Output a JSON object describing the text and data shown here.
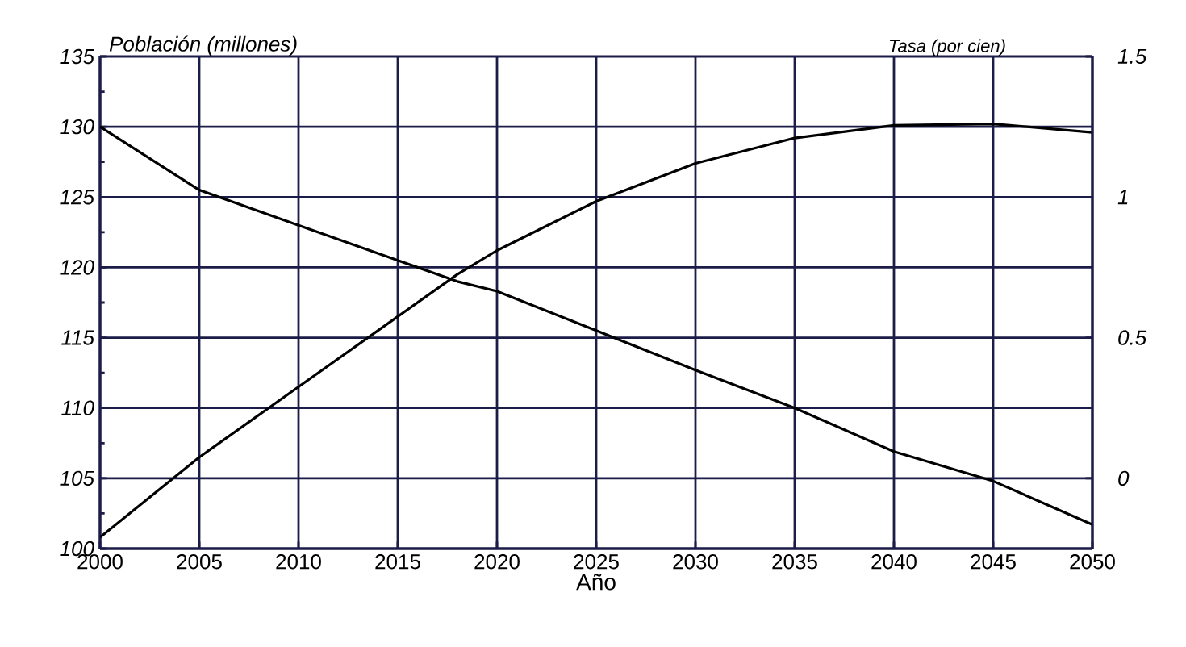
{
  "chart_data": {
    "type": "line",
    "xlabel": "Año",
    "ylabel": "Población (millones)",
    "y2label": "Tasa (por cien)",
    "x": [
      2000,
      2005,
      2010,
      2015,
      2018,
      2020,
      2025,
      2030,
      2035,
      2040,
      2045,
      2050
    ],
    "series": [
      {
        "color": "#000000",
        "values": [
          100.8,
          106.5,
          111.5,
          116.5,
          119.5,
          121.2,
          124.7,
          127.4,
          129.2,
          130.1,
          130.2,
          129.6
        ]
      },
      {
        "color": "#000000",
        "axis": "y2",
        "values": [
          1.25,
          1.025,
          0.9,
          0.775,
          0.7,
          0.665,
          0.525,
          0.385,
          0.25,
          0.095,
          -0.01,
          -0.165
        ]
      }
    ],
    "xlim": [
      2000,
      2050
    ],
    "xticks": [
      2000,
      2005,
      2010,
      2015,
      2020,
      2025,
      2030,
      2035,
      2040,
      2045,
      2050
    ],
    "ylim": [
      100,
      135
    ],
    "yticks": [
      100,
      105,
      110,
      115,
      120,
      125,
      130,
      135
    ],
    "y2lim": [
      -0.25,
      1.5
    ],
    "y2ticks": [
      0,
      0.5,
      1,
      1.5
    ],
    "grid": true,
    "marker": "none",
    "line_style": "solid"
  }
}
